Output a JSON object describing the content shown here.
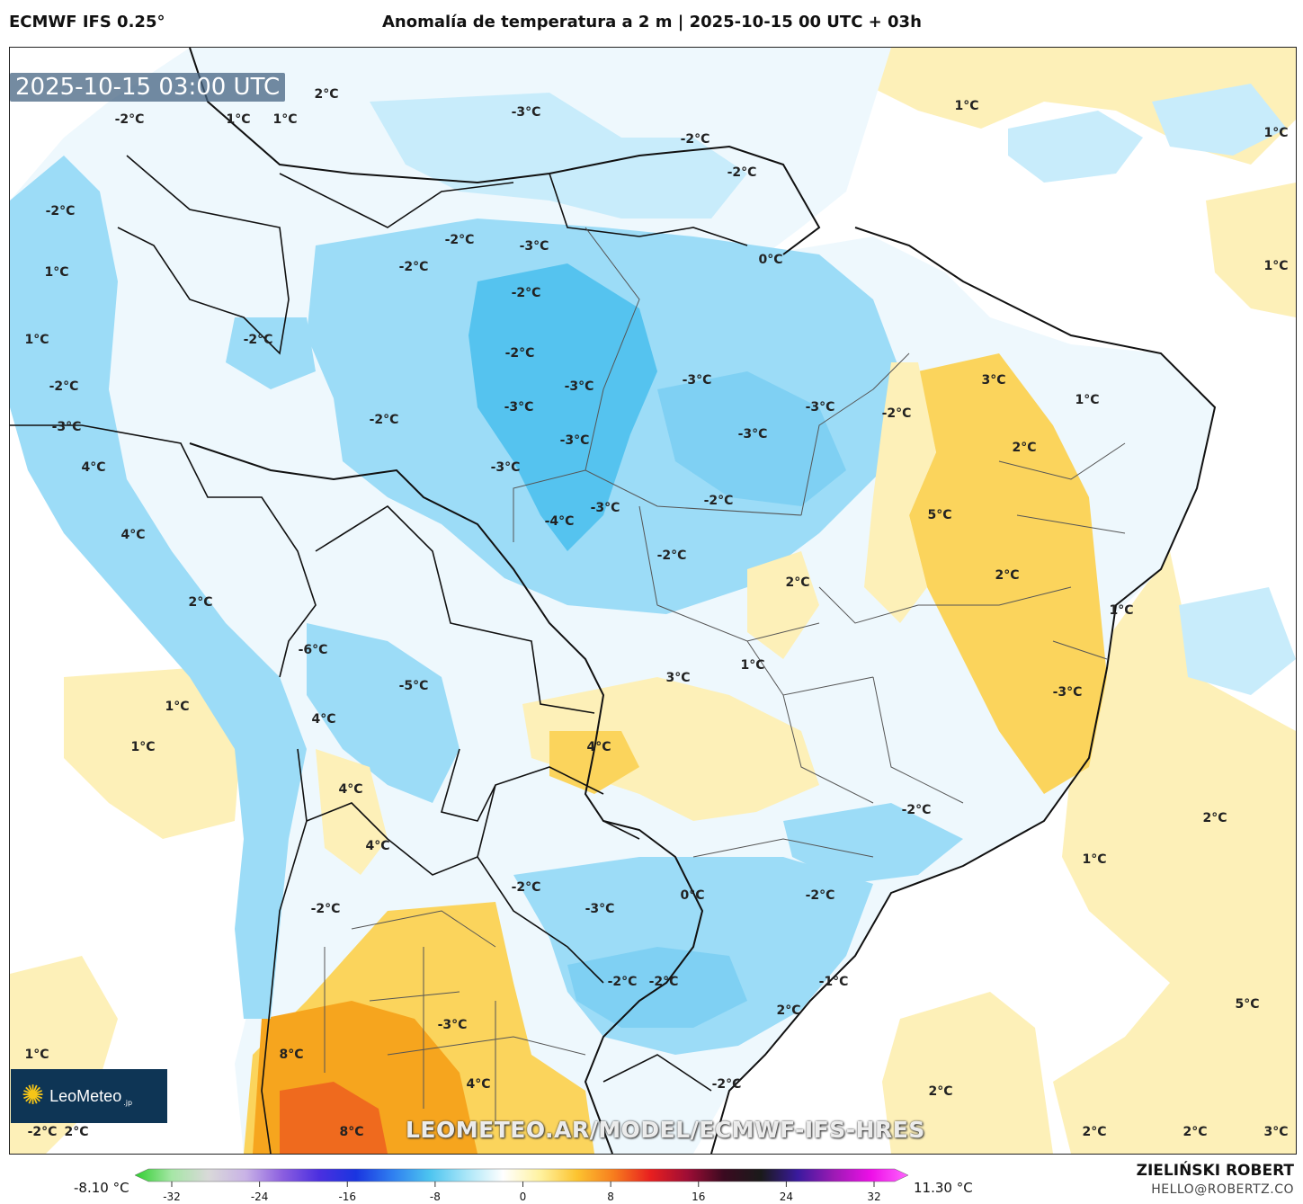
{
  "header": {
    "model": "ECMWF IFS 0.25°",
    "title": "Anomalía de temperatura a 2 m | 2025-10-15 00 UTC + 03h"
  },
  "map": {
    "valid_time": "2025-10-15 03:00 UTC",
    "watermark": "LEOMETEO.AR/MODEL/ECMWF-IFS-HRES",
    "logo": {
      "name": "LeoMeteo",
      "suffix": ".jp"
    },
    "labels": [
      "2°C",
      "1°C",
      "1°C",
      "-3°C",
      "-2°C",
      "-2°C",
      "1°C",
      "1°C",
      "-2°C",
      "-2°C",
      "-3°C",
      "1°C",
      "-2°C",
      "-2°C",
      "0°C",
      "1°C",
      "1°C",
      "-2°C",
      "-2°C",
      "-2°C",
      "-3°C",
      "-3°C",
      "-3°C",
      "-3°C",
      "-3°C",
      "-2°C",
      "3°C",
      "1°C",
      "-2°C",
      "-3°C",
      "-3°C",
      "2°C",
      "-2°C",
      "4°C",
      "-3°C",
      "-3°C",
      "-2°C",
      "5°C",
      "-4°C",
      "4°C",
      "-2°C",
      "2°C",
      "2°C",
      "2°C",
      "1°C",
      "-6°C",
      "3°C",
      "1°C",
      "1°C",
      "-5°C",
      "-3°C",
      "4°C",
      "4°C",
      "1°C",
      "4°C",
      "2°C",
      "-2°C",
      "4°C",
      "-2°C",
      "1°C",
      "-2°C",
      "-2°C",
      "0°C",
      "-3°C",
      "-3°C",
      "-2°C",
      "-2°C",
      "-1°C",
      "2°C",
      "5°C",
      "1°C",
      "-2°C",
      "8°C",
      "4°C",
      "2°C",
      "-2°C",
      "2°C",
      "2°C",
      "2°C",
      "2°C",
      "8°C",
      "3°C"
    ],
    "colors": {
      "cold_light": "#c8ecfb",
      "cold_mid": "#9cdcf7",
      "cold_strong": "#55c3ef",
      "warm_light": "#fdf0b8",
      "warm_mid": "#fbd45c",
      "warm_strong": "#f6a51e",
      "hot": "#ef6a1e",
      "border": "#111111"
    }
  },
  "colorbar": {
    "min_label": "-8.10 °C",
    "max_label": "11.30 °C",
    "ticks": [
      "-32",
      "-24",
      "-16",
      "-8",
      "0",
      "8",
      "16",
      "24",
      "32"
    ],
    "stops": [
      "#2fcf2f",
      "#a6e6a6",
      "#d9d9d9",
      "#c9b3e6",
      "#8c5fe0",
      "#4b2fe0",
      "#1a35e0",
      "#2f7ff0",
      "#4cc4f0",
      "#a9e6f8",
      "#ffffff",
      "#fff2a0",
      "#fcc430",
      "#f77d1e",
      "#e81f1f",
      "#9e0d35",
      "#3a0a20",
      "#1a1a1a",
      "#3a1a9e",
      "#9e1ab5",
      "#ee0fe8",
      "#ff66ff"
    ]
  },
  "author": {
    "name": "ZIELIŃSKI ROBERT",
    "email": "HELLO@ROBERTZ.CO"
  }
}
